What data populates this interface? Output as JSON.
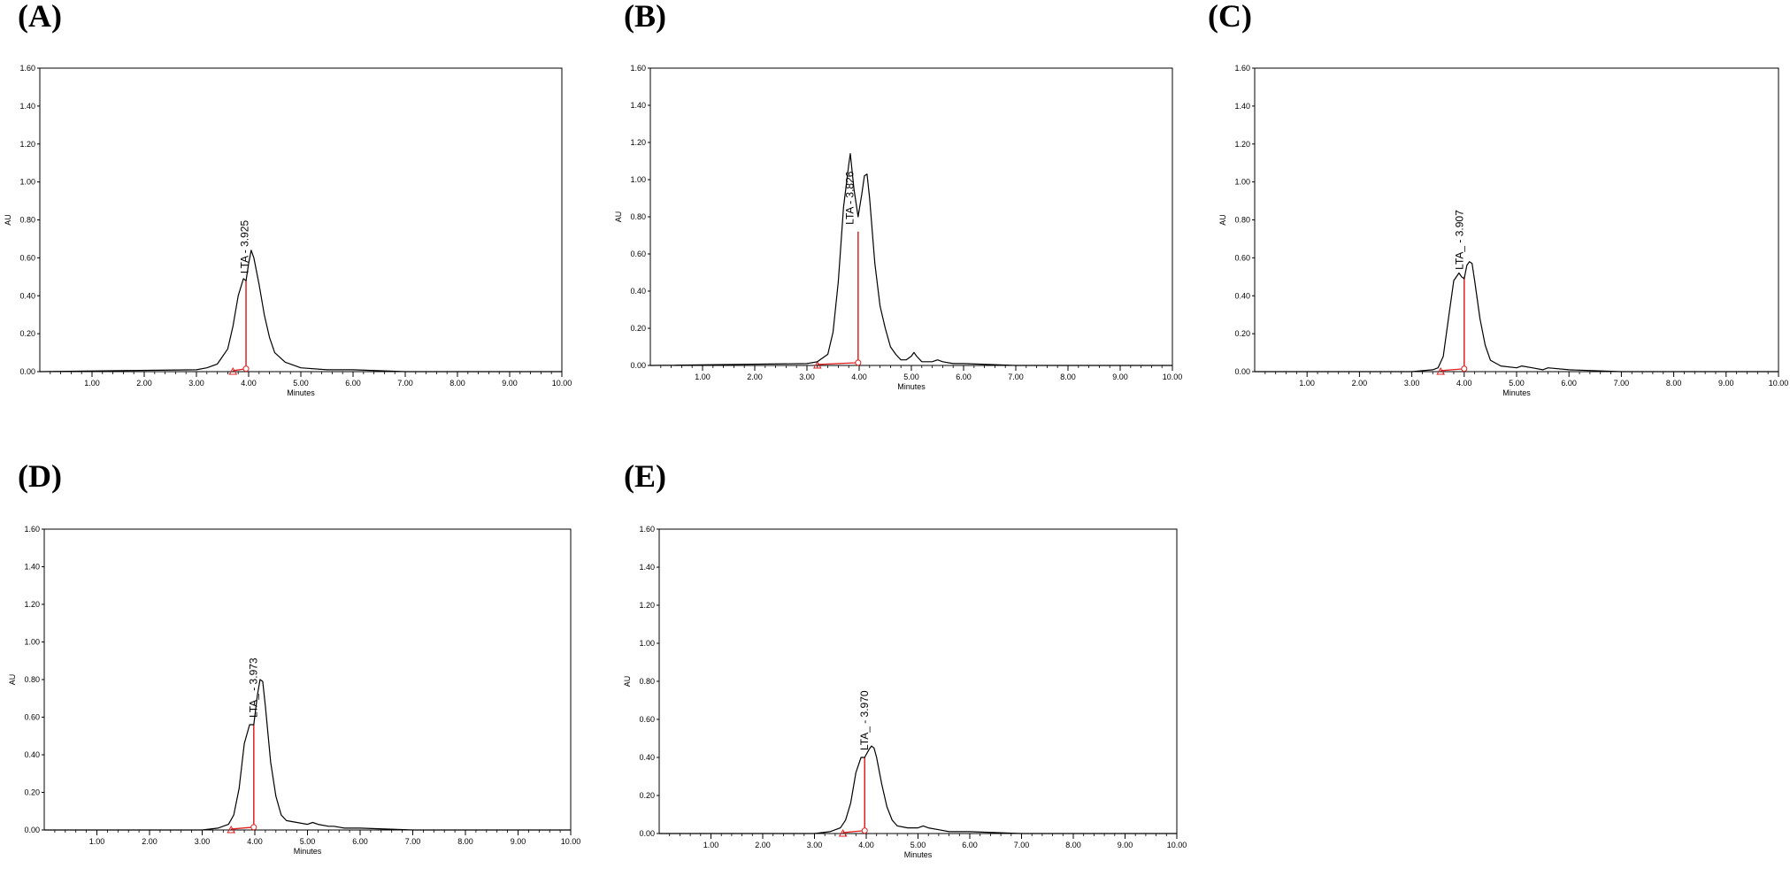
{
  "chart_data": [
    {
      "panel": "(A)",
      "type": "line",
      "xlabel": "Minutes",
      "ylabel": "AU",
      "xlim": [
        0,
        10
      ],
      "ylim": [
        0,
        1.6
      ],
      "xticks": [
        "1.00",
        "2.00",
        "3.00",
        "4.00",
        "5.00",
        "6.00",
        "7.00",
        "8.00",
        "9.00",
        "10.00"
      ],
      "yticks": [
        "0.00",
        "0.20",
        "0.40",
        "0.60",
        "0.80",
        "1.00",
        "1.20",
        "1.40",
        "1.60"
      ],
      "peak_label": "LTA - 3.925",
      "peak_rt": 3.925,
      "integration": {
        "start": 3.7,
        "end": 3.95,
        "height": 0.48
      },
      "x": [
        0,
        3.0,
        3.2,
        3.4,
        3.6,
        3.7,
        3.8,
        3.9,
        3.95,
        4.0,
        4.05,
        4.1,
        4.2,
        4.3,
        4.4,
        4.5,
        4.7,
        5.0,
        5.5,
        6.0,
        7.0,
        8.0,
        9.0,
        10.0
      ],
      "values": [
        0,
        0.01,
        0.02,
        0.04,
        0.12,
        0.24,
        0.4,
        0.49,
        0.48,
        0.57,
        0.64,
        0.6,
        0.46,
        0.3,
        0.18,
        0.1,
        0.05,
        0.02,
        0.01,
        0.01,
        0,
        0,
        0,
        0
      ]
    },
    {
      "panel": "(B)",
      "type": "line",
      "xlabel": "Minutes",
      "ylabel": "AU",
      "xlim": [
        0,
        10
      ],
      "ylim": [
        0,
        1.6
      ],
      "xticks": [
        "1.00",
        "2.00",
        "3.00",
        "4.00",
        "5.00",
        "6.00",
        "7.00",
        "8.00",
        "9.00",
        "10.00"
      ],
      "yticks": [
        "0.00",
        "0.20",
        "0.40",
        "0.60",
        "0.80",
        "1.00",
        "1.20",
        "1.40",
        "1.60"
      ],
      "peak_label": "LTA - 3.826",
      "peak_rt": 3.826,
      "integration": {
        "start": 3.2,
        "end": 3.98,
        "height": 0.72
      },
      "x": [
        0,
        3.0,
        3.2,
        3.4,
        3.5,
        3.6,
        3.7,
        3.8,
        3.83,
        3.9,
        3.98,
        4.05,
        4.1,
        4.15,
        4.2,
        4.3,
        4.4,
        4.5,
        4.6,
        4.7,
        4.8,
        4.9,
        5.0,
        5.05,
        5.1,
        5.2,
        5.4,
        5.5,
        5.6,
        5.8,
        6.0,
        7.0,
        8.0,
        9.0,
        10.0
      ],
      "values": [
        0,
        0.01,
        0.02,
        0.06,
        0.18,
        0.45,
        0.85,
        1.08,
        1.14,
        0.95,
        0.8,
        0.92,
        1.02,
        1.03,
        0.9,
        0.55,
        0.32,
        0.2,
        0.1,
        0.06,
        0.03,
        0.03,
        0.05,
        0.07,
        0.05,
        0.02,
        0.02,
        0.03,
        0.02,
        0.01,
        0.01,
        0,
        0,
        0,
        0
      ]
    },
    {
      "panel": "(C)",
      "type": "line",
      "xlabel": "Minutes",
      "ylabel": "AU",
      "xlim": [
        0,
        10
      ],
      "ylim": [
        0,
        1.6
      ],
      "xticks": [
        "1.00",
        "2.00",
        "3.00",
        "4.00",
        "5.00",
        "6.00",
        "7.00",
        "8.00",
        "9.00",
        "10.00"
      ],
      "yticks": [
        "0.00",
        "0.20",
        "0.40",
        "0.60",
        "0.80",
        "1.00",
        "1.20",
        "1.40",
        "1.60"
      ],
      "peak_label": "LTA_ - 3.907",
      "peak_rt": 3.907,
      "integration": {
        "start": 3.55,
        "end": 4.0,
        "height": 0.5
      },
      "x": [
        0,
        3.0,
        3.4,
        3.5,
        3.6,
        3.7,
        3.8,
        3.9,
        3.95,
        4.0,
        4.05,
        4.1,
        4.15,
        4.2,
        4.3,
        4.4,
        4.5,
        4.7,
        5.0,
        5.1,
        5.3,
        5.5,
        5.6,
        6.0,
        7.0,
        8.0,
        9.0,
        10.0
      ],
      "values": [
        0,
        0,
        0.01,
        0.02,
        0.08,
        0.28,
        0.48,
        0.52,
        0.5,
        0.49,
        0.56,
        0.58,
        0.57,
        0.48,
        0.28,
        0.14,
        0.06,
        0.03,
        0.02,
        0.03,
        0.02,
        0.01,
        0.02,
        0.01,
        0,
        0,
        0,
        0
      ]
    },
    {
      "panel": "(D)",
      "type": "line",
      "xlabel": "Minutes",
      "ylabel": "AU",
      "xlim": [
        0,
        10
      ],
      "ylim": [
        0,
        1.6
      ],
      "xticks": [
        "1.00",
        "2.00",
        "3.00",
        "4.00",
        "5.00",
        "6.00",
        "7.00",
        "8.00",
        "9.00",
        "10.00"
      ],
      "yticks": [
        "0.00",
        "0.20",
        "0.40",
        "0.60",
        "0.80",
        "1.00",
        "1.20",
        "1.40",
        "1.60"
      ],
      "peak_label": "LTA_ - 3.973",
      "peak_rt": 3.973,
      "integration": {
        "start": 3.55,
        "end": 3.98,
        "height": 0.56
      },
      "x": [
        0,
        3.0,
        3.3,
        3.5,
        3.6,
        3.7,
        3.8,
        3.9,
        3.98,
        4.05,
        4.1,
        4.15,
        4.2,
        4.3,
        4.4,
        4.5,
        4.6,
        4.8,
        5.0,
        5.1,
        5.2,
        5.4,
        5.5,
        5.7,
        6.0,
        7.0,
        8.0,
        9.0,
        10.0
      ],
      "values": [
        0,
        0,
        0.01,
        0.03,
        0.08,
        0.22,
        0.46,
        0.56,
        0.56,
        0.72,
        0.8,
        0.79,
        0.66,
        0.36,
        0.18,
        0.08,
        0.05,
        0.04,
        0.03,
        0.04,
        0.03,
        0.02,
        0.02,
        0.01,
        0.01,
        0,
        0,
        0,
        0
      ]
    },
    {
      "panel": "(E)",
      "type": "line",
      "xlabel": "Minutes",
      "ylabel": "AU",
      "xlim": [
        0,
        10
      ],
      "ylim": [
        0,
        1.6
      ],
      "xticks": [
        "1.00",
        "2.00",
        "3.00",
        "4.00",
        "5.00",
        "6.00",
        "7.00",
        "8.00",
        "9.00",
        "10.00"
      ],
      "yticks": [
        "0.00",
        "0.20",
        "0.40",
        "0.60",
        "0.80",
        "1.00",
        "1.20",
        "1.40",
        "1.60"
      ],
      "peak_label": "LTA_ - 3.970",
      "peak_rt": 3.97,
      "integration": {
        "start": 3.55,
        "end": 3.97,
        "height": 0.4
      },
      "x": [
        0,
        3.0,
        3.3,
        3.5,
        3.6,
        3.7,
        3.8,
        3.9,
        3.97,
        4.05,
        4.1,
        4.15,
        4.2,
        4.3,
        4.4,
        4.5,
        4.6,
        4.8,
        5.0,
        5.1,
        5.2,
        5.4,
        5.6,
        6.0,
        7.0,
        8.0,
        9.0,
        10.0
      ],
      "values": [
        0,
        0,
        0.01,
        0.03,
        0.07,
        0.16,
        0.32,
        0.4,
        0.4,
        0.44,
        0.46,
        0.45,
        0.4,
        0.26,
        0.14,
        0.07,
        0.04,
        0.03,
        0.03,
        0.04,
        0.03,
        0.02,
        0.01,
        0.01,
        0,
        0,
        0,
        0
      ]
    }
  ]
}
